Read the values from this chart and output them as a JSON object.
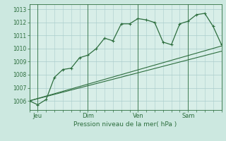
{
  "background_color": "#cce8e0",
  "plot_bg_color": "#d8eee8",
  "grid_color": "#aacccc",
  "line_color": "#2d6e3e",
  "xlabel": "Pression niveau de la mer( hPa )",
  "ylim": [
    1005.3,
    1013.4
  ],
  "yticks": [
    1006,
    1007,
    1008,
    1009,
    1010,
    1011,
    1012,
    1013
  ],
  "day_labels": [
    "Jeu",
    "Dim",
    "Ven",
    "Sam"
  ],
  "day_positions": [
    1,
    7,
    13,
    19
  ],
  "series1_x": [
    0,
    1,
    2,
    3,
    4,
    5,
    6,
    7,
    8,
    9,
    10,
    11,
    12,
    13,
    14,
    15,
    16,
    17,
    18,
    19,
    20,
    21,
    22,
    23
  ],
  "series1_y": [
    1006.0,
    1005.7,
    1006.1,
    1007.8,
    1008.4,
    1008.5,
    1009.3,
    1009.5,
    1010.0,
    1010.8,
    1010.6,
    1011.9,
    1011.9,
    1012.3,
    1012.2,
    1012.0,
    1010.5,
    1010.3,
    1011.9,
    1012.1,
    1012.6,
    1012.7,
    1011.7,
    1010.3
  ],
  "series2_x": [
    0,
    23
  ],
  "series2_y": [
    1006.0,
    1010.2
  ],
  "series3_x": [
    0,
    23
  ],
  "series3_y": [
    1006.0,
    1009.8
  ],
  "xlim": [
    0,
    23
  ]
}
